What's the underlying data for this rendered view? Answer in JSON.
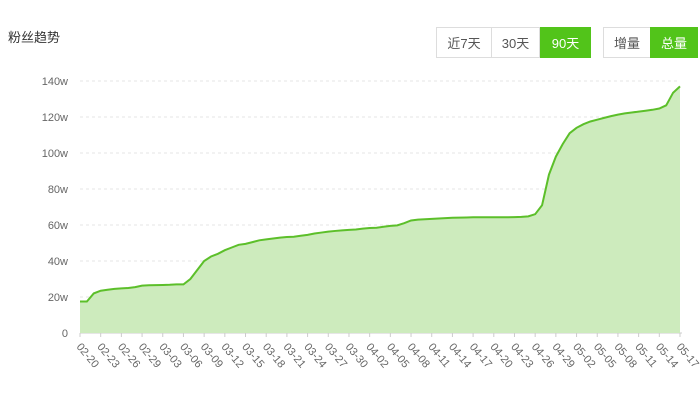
{
  "chart_data": {
    "type": "area",
    "title": "粉丝趋势",
    "categories": [
      "02-20",
      null,
      null,
      "02-23",
      null,
      null,
      "02-26",
      null,
      null,
      "02-29",
      null,
      null,
      "03-03",
      null,
      null,
      "03-06",
      null,
      null,
      "03-09",
      null,
      null,
      "03-12",
      null,
      null,
      "03-15",
      null,
      null,
      "03-18",
      null,
      null,
      "03-21",
      null,
      null,
      "03-24",
      null,
      null,
      "03-27",
      null,
      null,
      "03-30",
      null,
      null,
      "04-02",
      null,
      null,
      "04-05",
      null,
      null,
      "04-08",
      null,
      null,
      "04-11",
      null,
      null,
      "04-14",
      null,
      null,
      "04-17",
      null,
      null,
      "04-20",
      null,
      null,
      "04-23",
      null,
      null,
      "04-26",
      null,
      null,
      "04-29",
      null,
      null,
      "05-02",
      null,
      null,
      "05-05",
      null,
      null,
      "05-08",
      null,
      null,
      "05-11",
      null,
      null,
      "05-14",
      null,
      null,
      "05-17"
    ],
    "values": [
      17.5,
      17.5,
      22,
      23.5,
      24,
      24.5,
      24.8,
      25,
      25.5,
      26.3,
      26.5,
      26.6,
      26.7,
      26.8,
      27,
      27,
      30,
      35,
      40,
      42.5,
      44,
      46,
      47.5,
      49,
      49.5,
      50.5,
      51.5,
      52,
      52.5,
      53,
      53.3,
      53.5,
      54,
      54.5,
      55.3,
      55.8,
      56.3,
      56.7,
      57,
      57.3,
      57.5,
      58,
      58.3,
      58.5,
      59,
      59.5,
      59.8,
      61,
      62.5,
      63,
      63.2,
      63.4,
      63.6,
      63.8,
      64,
      64.1,
      64.2,
      64.3,
      64.3,
      64.3,
      64.3,
      64.3,
      64.3,
      64.4,
      64.5,
      64.8,
      66,
      71,
      88,
      98,
      105,
      111,
      114,
      116,
      117.5,
      118.5,
      119.5,
      120.5,
      121.3,
      122,
      122.5,
      123,
      123.5,
      124,
      124.7,
      126.5,
      133.5,
      137
    ],
    "color": "#5cbf2a",
    "fill": "#cdebbd",
    "ylim": [
      0,
      140
    ],
    "yticks": [
      0,
      {
        "value": 20,
        "label": "20w"
      },
      {
        "value": 40,
        "label": "40w"
      },
      {
        "value": 60,
        "label": "60w"
      },
      {
        "value": 80,
        "label": "80w"
      },
      {
        "value": 100,
        "label": "100w"
      },
      {
        "value": 120,
        "label": "120w"
      },
      {
        "value": 140,
        "label": "140w"
      }
    ],
    "grid": true
  },
  "range_buttons": [
    "近7天",
    "30天",
    "90天"
  ],
  "range_active": 2,
  "mode_buttons": [
    "增量",
    "总量"
  ],
  "mode_active": 1
}
